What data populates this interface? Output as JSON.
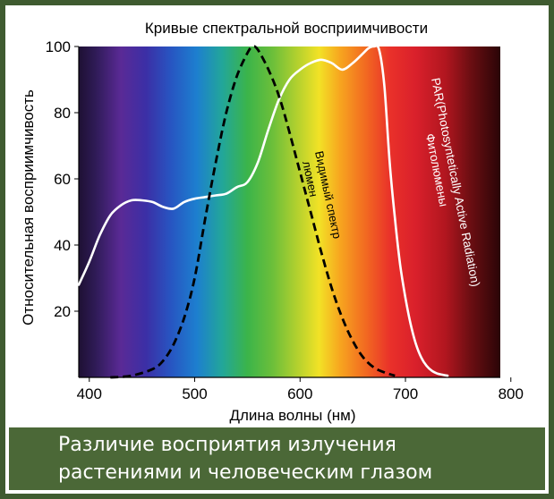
{
  "chart_data": {
    "type": "line",
    "title": "Кривые спектральной восприимчивости",
    "xlabel": "Длина волны (нм)",
    "ylabel": "Относительная восприимчивость",
    "xlim": [
      390,
      790
    ],
    "ylim": [
      0,
      100
    ],
    "x_ticks": [
      400,
      500,
      600,
      700,
      800
    ],
    "y_ticks": [
      20,
      40,
      60,
      80,
      100
    ],
    "background": "visible spectrum gradient (violet → red → black)",
    "series": [
      {
        "name_lines": [
          "PAR(Photosyntetically Active Radiation)",
          "Фитолюмены"
        ],
        "color": "#ffffff",
        "style": "solid",
        "x": [
          390,
          400,
          410,
          420,
          430,
          440,
          450,
          460,
          470,
          480,
          490,
          500,
          510,
          520,
          530,
          540,
          550,
          560,
          570,
          580,
          590,
          600,
          610,
          620,
          630,
          640,
          650,
          660,
          665,
          670,
          675,
          680,
          685,
          690,
          695,
          700,
          705,
          710,
          715,
          720,
          725,
          730,
          735,
          740
        ],
        "values": [
          28,
          35,
          43,
          49,
          52,
          53.5,
          53.5,
          53,
          51.5,
          51,
          53,
          54,
          54.5,
          55,
          55.5,
          57.5,
          59,
          65,
          75,
          84,
          90,
          93,
          95,
          96,
          95,
          93,
          95,
          98,
          99.5,
          100,
          99,
          88,
          65,
          48,
          34,
          24,
          16,
          10,
          6,
          3.5,
          2,
          1.2,
          0.8,
          0.5
        ]
      },
      {
        "name_lines": [
          "Видимый спектр",
          "люмен"
        ],
        "color": "#000000",
        "style": "dashed",
        "x": [
          420,
          440,
          460,
          470,
          480,
          490,
          500,
          510,
          520,
          530,
          540,
          550,
          555,
          560,
          570,
          580,
          590,
          600,
          610,
          620,
          630,
          640,
          650,
          660,
          670,
          680,
          690
        ],
        "values": [
          0,
          0.5,
          2.5,
          5,
          10,
          18,
          30,
          48,
          65,
          80,
          91,
          98,
          100,
          99,
          93,
          85,
          74,
          62,
          50,
          38,
          27,
          18,
          11,
          6,
          3,
          1.5,
          0.5
        ]
      }
    ]
  },
  "caption": {
    "line1": "Различие восприятия излучения",
    "line2": "растениями и человеческим глазом"
  }
}
